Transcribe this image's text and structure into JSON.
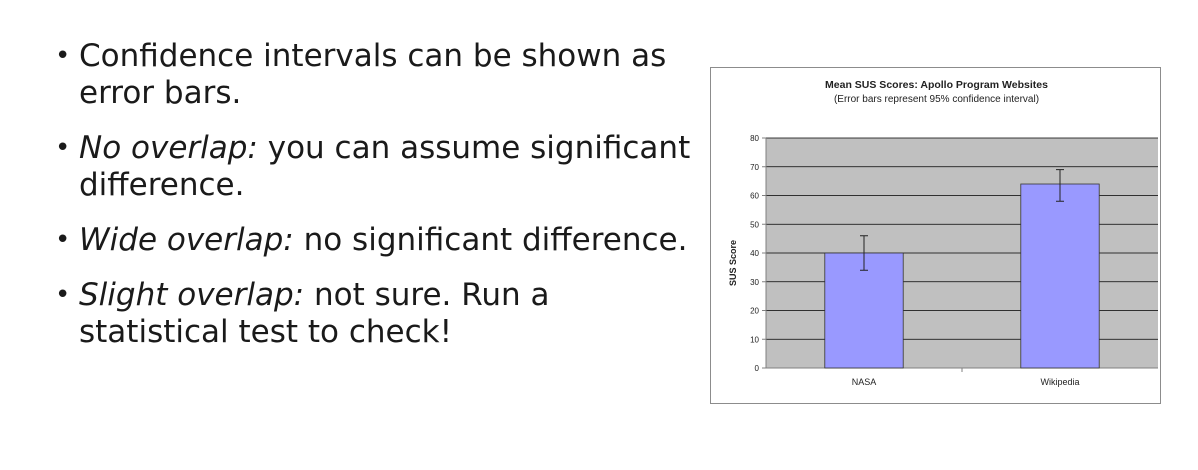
{
  "bullets": [
    {
      "italic": "",
      "text": "Confidence intervals can be shown as error bars."
    },
    {
      "italic": "No overlap:",
      "text": " you can assume significant difference."
    },
    {
      "italic": "Wide overlap:",
      "text": " no significant difference."
    },
    {
      "italic": "Slight overlap:",
      "text": " not sure. Run a statistical test to check!"
    }
  ],
  "chart_data": {
    "type": "bar",
    "title": "Mean SUS Scores: Apollo Program Websites",
    "subtitle": "(Error bars represent 95% confidence interval)",
    "xlabel": "",
    "ylabel": "SUS Score",
    "categories": [
      "NASA",
      "Wikipedia"
    ],
    "values": [
      40,
      64
    ],
    "error_low": [
      34,
      58
    ],
    "error_high": [
      46,
      69
    ],
    "ylim": [
      0,
      80
    ],
    "yticks": [
      0,
      10,
      20,
      30,
      40,
      50,
      60,
      70,
      80
    ],
    "grid": true,
    "legend": "none",
    "colors": {
      "bar": "#9999ff",
      "bar_stroke": "#333333",
      "plot_bg": "#c0c0c0",
      "grid": "#000000",
      "axis": "#808080"
    }
  }
}
